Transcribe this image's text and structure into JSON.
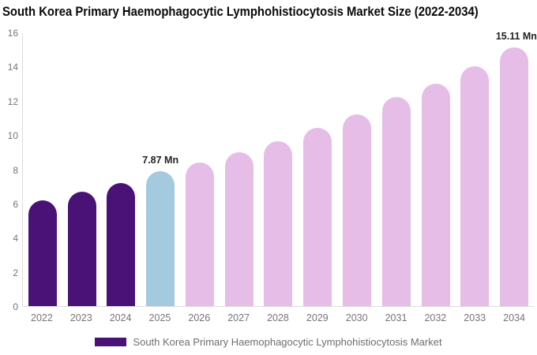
{
  "title": "South Korea Primary Haemophagocytic Lymphohistiocytosis Market Size (2022-2034)",
  "chart_data": {
    "type": "bar",
    "title": "South Korea Primary Haemophagocytic Lymphohistiocytosis Market Size (2022-2034)",
    "categories": [
      "2022",
      "2023",
      "2024",
      "2025",
      "2026",
      "2027",
      "2028",
      "2029",
      "2030",
      "2031",
      "2032",
      "2033",
      "2034"
    ],
    "values": [
      6.2,
      6.7,
      7.2,
      7.87,
      8.4,
      9.0,
      9.65,
      10.4,
      11.2,
      12.2,
      13.0,
      14.0,
      15.11
    ],
    "unit": "Mn",
    "ylim": [
      0,
      16
    ],
    "yticks": [
      0,
      2,
      4,
      6,
      8,
      10,
      12,
      14,
      16
    ],
    "grid": false,
    "xlabel": "",
    "ylabel": "",
    "bar_segments": {
      "historical_years": [
        "2022",
        "2023",
        "2024"
      ],
      "base_year": "2025",
      "forecast_years": [
        "2026",
        "2027",
        "2028",
        "2029",
        "2030",
        "2031",
        "2032",
        "2033",
        "2034"
      ]
    },
    "bar_colors": [
      "#4A1277",
      "#4A1277",
      "#4A1277",
      "#A3CADF",
      "#E6BDE7",
      "#E6BDE7",
      "#E6BDE7",
      "#E6BDE7",
      "#E6BDE7",
      "#E6BDE7",
      "#E6BDE7",
      "#E6BDE7",
      "#E6BDE7"
    ],
    "annotations": [
      {
        "category": "2025",
        "text": "7.87 Mn"
      },
      {
        "category": "2034",
        "text": "15.11 Mn"
      }
    ],
    "legend_position": "bottom",
    "legend": [
      {
        "label": "South Korea Primary Haemophagocytic Lymphohistiocytosis Market",
        "color": "#4A1277"
      }
    ]
  },
  "colors": {
    "historical_bar": "#4A1277",
    "base_year_bar": "#A3CADF",
    "forecast_bar": "#E6BDE7",
    "axis_line": "#DCDCDC",
    "tick_text": "#757575",
    "annotation_text": "#222222",
    "title_text": "#0A0A0A",
    "legend_text": "#6E6E6E"
  }
}
